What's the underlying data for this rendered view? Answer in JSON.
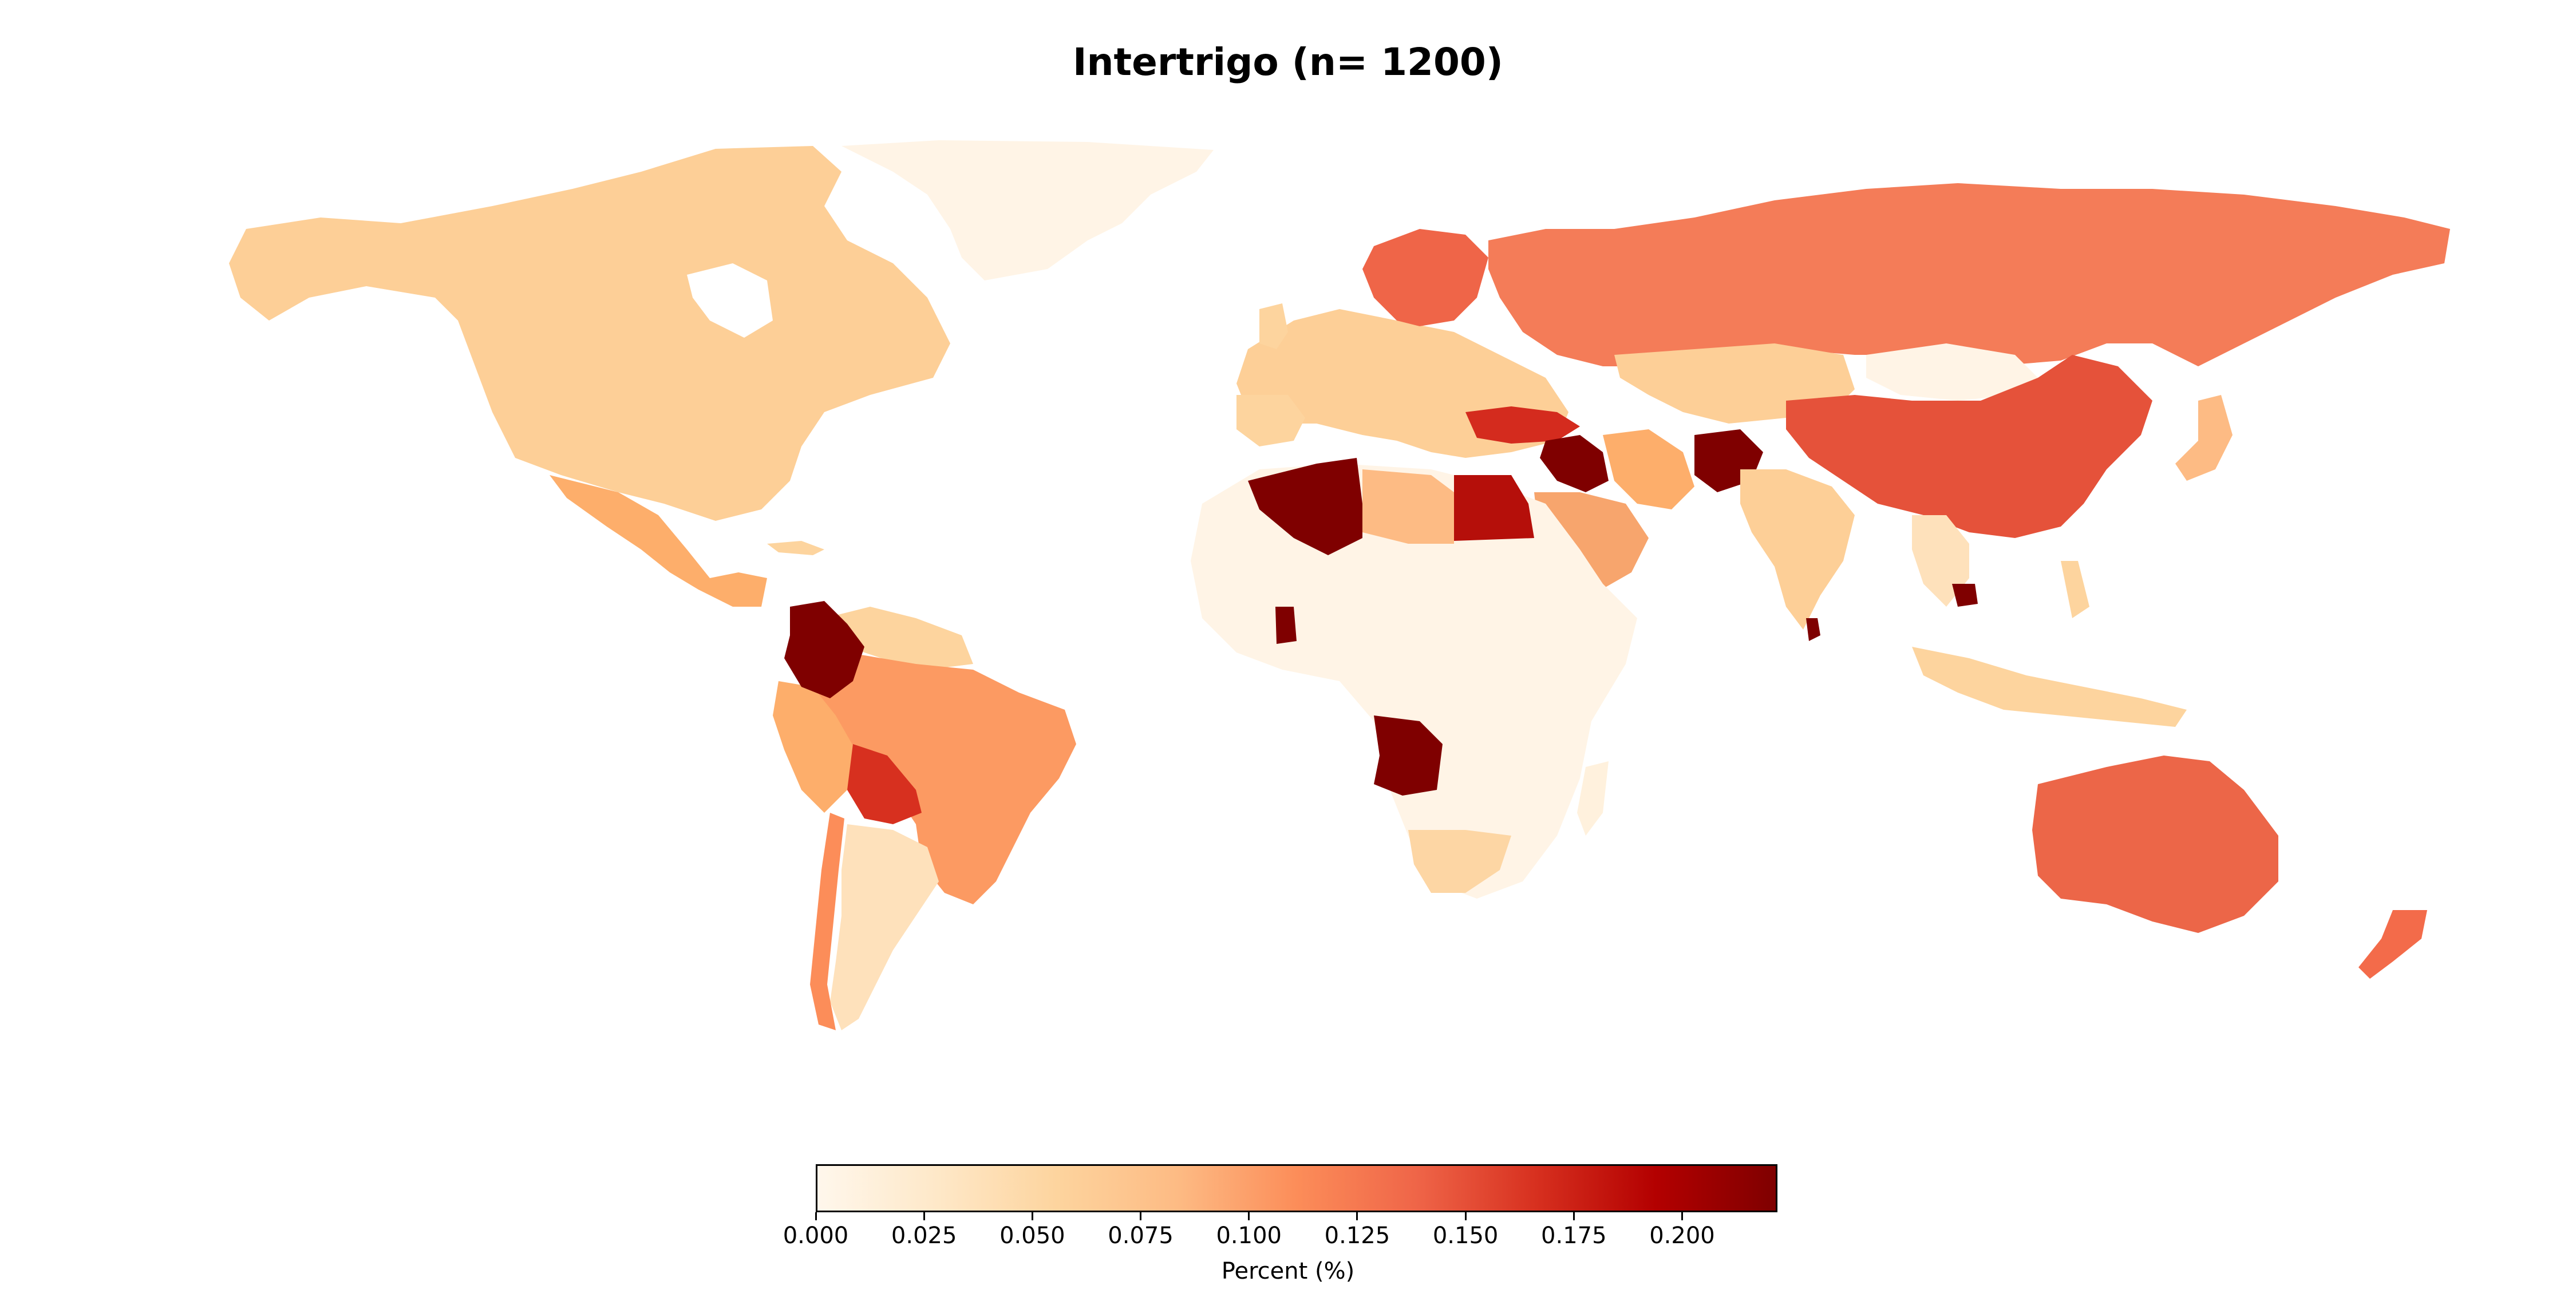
{
  "chart_data": {
    "type": "choropleth",
    "title": "Intertrigo (n= 1200)",
    "colorbar": {
      "label": "Percent (%)",
      "colormap": "OrRd",
      "range": [
        0.0,
        0.222
      ],
      "ticks": [
        "0.000",
        "0.025",
        "0.050",
        "0.075",
        "0.100",
        "0.125",
        "0.150",
        "0.175",
        "0.200"
      ],
      "tick_values": [
        0.0,
        0.025,
        0.05,
        0.075,
        0.1,
        0.125,
        0.15,
        0.175,
        0.2
      ],
      "colors": [
        "#fff7ec",
        "#fee8c8",
        "#fdd49e",
        "#fdbb84",
        "#fc8d59",
        "#ef6548",
        "#d7301f",
        "#b30000",
        "#7f0000"
      ]
    },
    "regions": [
      {
        "name": "Canada",
        "value": 0.06
      },
      {
        "name": "United States",
        "value": 0.06
      },
      {
        "name": "Greenland",
        "value": 0.0
      },
      {
        "name": "Mexico",
        "value": 0.08
      },
      {
        "name": "Colombia",
        "value": 0.22
      },
      {
        "name": "Venezuela",
        "value": 0.05
      },
      {
        "name": "Brazil",
        "value": 0.1
      },
      {
        "name": "Peru",
        "value": 0.08
      },
      {
        "name": "Bolivia",
        "value": 0.16
      },
      {
        "name": "Argentina",
        "value": 0.04
      },
      {
        "name": "Chile",
        "value": 0.11
      },
      {
        "name": "Russia",
        "value": 0.12
      },
      {
        "name": "China",
        "value": 0.14
      },
      {
        "name": "India",
        "value": 0.06
      },
      {
        "name": "Algeria",
        "value": 0.22
      },
      {
        "name": "Libya",
        "value": 0.07
      },
      {
        "name": "Egypt",
        "value": 0.19
      },
      {
        "name": "Saudi Arabia",
        "value": 0.09
      },
      {
        "name": "Afghanistan",
        "value": 0.22
      },
      {
        "name": "Iraq",
        "value": 0.22
      },
      {
        "name": "Turkey",
        "value": 0.17
      },
      {
        "name": "Angola",
        "value": 0.22
      },
      {
        "name": "Ghana",
        "value": 0.22
      },
      {
        "name": "South Africa",
        "value": 0.05
      },
      {
        "name": "Australia",
        "value": 0.13
      },
      {
        "name": "New Zealand",
        "value": 0.12
      },
      {
        "name": "Sri Lanka",
        "value": 0.22
      },
      {
        "name": "Cambodia",
        "value": 0.22
      },
      {
        "name": "Norway",
        "value": 0.12
      },
      {
        "name": "Sweden",
        "value": 0.11
      }
    ]
  }
}
